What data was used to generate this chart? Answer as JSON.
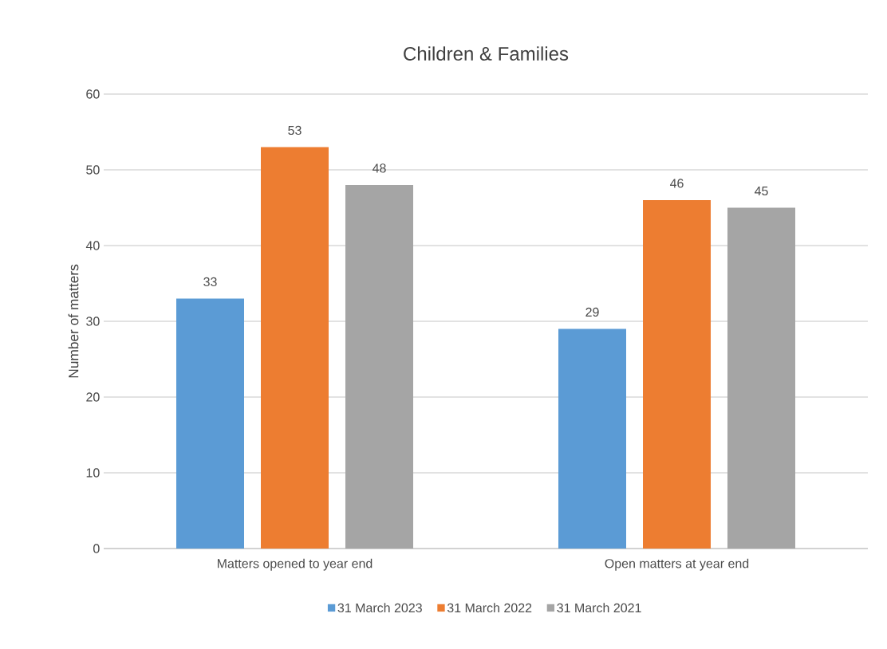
{
  "chart_data": {
    "type": "bar",
    "title": "Children & Families",
    "ylabel": "Number of matters",
    "categories": [
      "Matters opened to year end",
      "Open matters at year end"
    ],
    "series": [
      {
        "name": "31 March 2023",
        "color": "#5b9bd5",
        "values": [
          33,
          29
        ]
      },
      {
        "name": "31 March 2022",
        "color": "#ed7d31",
        "values": [
          53,
          46
        ]
      },
      {
        "name": "31 March 2021",
        "color": "#a5a5a5",
        "values": [
          48,
          45
        ]
      }
    ],
    "ylim": [
      0,
      60
    ],
    "yticks": [
      0,
      10,
      20,
      30,
      40,
      50,
      60
    ],
    "grid": "y",
    "legend": "bottom",
    "data_labels": true
  }
}
